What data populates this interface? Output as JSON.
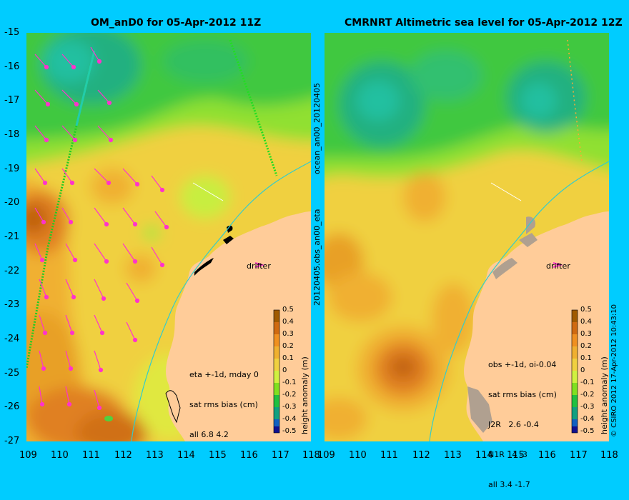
{
  "left_title": "OM_anD0 for 05-Apr-2012 11Z",
  "right_title": "CMRNRT Altimetric sea level  for 05-Apr-2012 12Z",
  "y_ticks": [
    "-15",
    "-16",
    "-17",
    "-18",
    "-19",
    "-20",
    "-21",
    "-22",
    "-23",
    "-24",
    "-25",
    "-26",
    "-27"
  ],
  "x_ticks": [
    "109",
    "110",
    "111",
    "112",
    "113",
    "114",
    "115",
    "116",
    "117",
    "118"
  ],
  "left_vert_top": "ocean_an00_20120405",
  "left_vert_bottom": "20120405.obs_an00_eta",
  "drifter_label": "drifter",
  "left_stats": [
    "eta +-1d, mday 0",
    "sat rms bias (cm)",
    "all 6.8 4.2"
  ],
  "right_stats": [
    "obs +-1d, oi-0.04",
    "sat rms bias (cm)",
    "J2R   2.6 -0.4",
    "N1R   4 -3",
    "all 3.4 -1.7"
  ],
  "colorbar": {
    "label": "height anomaly (m)",
    "ticks": [
      "0.5",
      "0.4",
      "0.3",
      "0.2",
      "0.1",
      "0",
      "-0.1",
      "-0.2",
      "-0.3",
      "-0.4",
      "-0.5"
    ],
    "colors": [
      "#a05a00",
      "#d06a10",
      "#f09020",
      "#f0b030",
      "#f0d040",
      "#d0f040",
      "#80e020",
      "#20c040",
      "#10a080",
      "#1060c0",
      "#101090"
    ]
  },
  "credit": "© CSIRO 2012   17-Apr-2012 10:43:10",
  "colors": {
    "background": "#00ccff",
    "land": "#ffcc99",
    "arrows": "#ff33cc"
  }
}
